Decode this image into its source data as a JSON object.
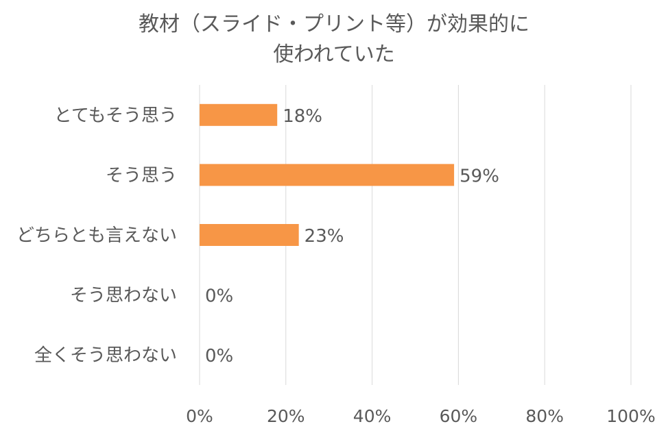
{
  "chart_data": {
    "type": "bar",
    "orientation": "horizontal",
    "title_lines": [
      "教材（スライド・プリント等）が効果的に",
      "使われていた"
    ],
    "categories": [
      "とてもそう思う",
      "そう思う",
      "どちらとも言えない",
      "そう思わない",
      "全くそう思わない"
    ],
    "values": [
      18,
      59,
      23,
      0,
      0
    ],
    "data_labels": [
      "18%",
      "59%",
      "23%",
      "0%",
      "0%"
    ],
    "xlim": [
      0,
      100
    ],
    "x_ticks": [
      0,
      20,
      40,
      60,
      80,
      100
    ],
    "x_tick_labels": [
      "0%",
      "20%",
      "40%",
      "60%",
      "80%",
      "100%"
    ],
    "grid": true,
    "legend": "none",
    "bar_color": "#F79646",
    "grid_color": "#D9D9D9",
    "text_color": "#595959"
  }
}
